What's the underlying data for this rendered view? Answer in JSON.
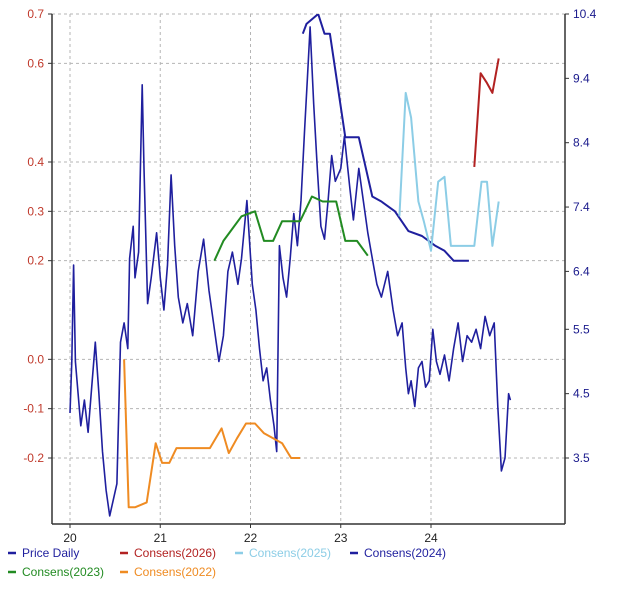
{
  "chart_data": {
    "type": "line",
    "title": "",
    "xlabel": "",
    "ylabel_left": "",
    "ylabel_right": "",
    "grid": true,
    "legend_position": "bottom",
    "x_axis": {
      "ticks": [
        2020,
        2021,
        2022,
        2023,
        2024
      ],
      "labels": [
        "20",
        "21",
        "22",
        "23",
        "24"
      ],
      "range": [
        2019.85,
        2025.25
      ]
    },
    "y_left": {
      "ticks": [
        0.7,
        0.6,
        0.4,
        0.3,
        0.2,
        0.0,
        -0.1,
        -0.2
      ],
      "labels": [
        "0.7",
        "0.6",
        "0.4",
        "0.3",
        "0.2",
        "0.0",
        "-0.1",
        "-0.2"
      ],
      "color": "#c0392b"
    },
    "y_right": {
      "ticks": [
        10.4,
        9.4,
        8.4,
        7.4,
        6.4,
        5.5,
        4.5,
        3.5
      ],
      "labels": [
        "10.4",
        "9.4",
        "8.4",
        "7.4",
        "6.4",
        "5.5",
        "4.5",
        "3.5"
      ],
      "color": "#1a1a8c"
    },
    "series": [
      {
        "name": "Price Daily",
        "axis": "right",
        "color": "#1f1f9e",
        "points": [
          [
            2020.0,
            4.2
          ],
          [
            2020.02,
            5.0
          ],
          [
            2020.04,
            6.5
          ],
          [
            2020.06,
            5.0
          ],
          [
            2020.09,
            4.5
          ],
          [
            2020.12,
            4.0
          ],
          [
            2020.16,
            4.4
          ],
          [
            2020.2,
            3.9
          ],
          [
            2020.24,
            4.6
          ],
          [
            2020.28,
            5.3
          ],
          [
            2020.32,
            4.5
          ],
          [
            2020.36,
            3.6
          ],
          [
            2020.4,
            3.0
          ],
          [
            2020.44,
            2.6
          ],
          [
            2020.48,
            2.85
          ],
          [
            2020.52,
            3.1
          ],
          [
            2020.56,
            5.3
          ],
          [
            2020.6,
            5.6
          ],
          [
            2020.64,
            5.2
          ],
          [
            2020.66,
            6.6
          ],
          [
            2020.7,
            7.1
          ],
          [
            2020.72,
            6.3
          ],
          [
            2020.76,
            6.7
          ],
          [
            2020.8,
            9.3
          ],
          [
            2020.82,
            8.0
          ],
          [
            2020.86,
            5.9
          ],
          [
            2020.9,
            6.3
          ],
          [
            2020.96,
            7.0
          ],
          [
            2021.0,
            6.3
          ],
          [
            2021.04,
            5.8
          ],
          [
            2021.08,
            6.5
          ],
          [
            2021.12,
            7.9
          ],
          [
            2021.16,
            6.8
          ],
          [
            2021.2,
            6.0
          ],
          [
            2021.25,
            5.6
          ],
          [
            2021.3,
            5.9
          ],
          [
            2021.36,
            5.4
          ],
          [
            2021.42,
            6.4
          ],
          [
            2021.48,
            6.9
          ],
          [
            2021.54,
            6.1
          ],
          [
            2021.6,
            5.5
          ],
          [
            2021.65,
            5.0
          ],
          [
            2021.7,
            5.4
          ],
          [
            2021.75,
            6.4
          ],
          [
            2021.8,
            6.7
          ],
          [
            2021.86,
            6.2
          ],
          [
            2021.9,
            6.6
          ],
          [
            2021.96,
            7.5
          ],
          [
            2022.02,
            6.2
          ],
          [
            2022.06,
            5.8
          ],
          [
            2022.1,
            5.2
          ],
          [
            2022.14,
            4.7
          ],
          [
            2022.18,
            4.9
          ],
          [
            2022.22,
            4.4
          ],
          [
            2022.26,
            4.0
          ],
          [
            2022.29,
            3.6
          ],
          [
            2022.32,
            6.8
          ],
          [
            2022.36,
            6.3
          ],
          [
            2022.4,
            6.0
          ],
          [
            2022.44,
            6.6
          ],
          [
            2022.48,
            7.3
          ],
          [
            2022.52,
            6.8
          ],
          [
            2022.56,
            7.5
          ],
          [
            2022.6,
            8.6
          ],
          [
            2022.63,
            9.4
          ],
          [
            2022.66,
            10.2
          ],
          [
            2022.7,
            9.0
          ],
          [
            2022.74,
            8.0
          ],
          [
            2022.78,
            7.1
          ],
          [
            2022.82,
            6.9
          ],
          [
            2022.86,
            7.5
          ],
          [
            2022.9,
            8.2
          ],
          [
            2022.94,
            7.8
          ],
          [
            2023.0,
            8.0
          ],
          [
            2023.04,
            8.5
          ],
          [
            2023.1,
            7.7
          ],
          [
            2023.14,
            7.2
          ],
          [
            2023.2,
            8.0
          ],
          [
            2023.26,
            7.4
          ],
          [
            2023.3,
            7.0
          ],
          [
            2023.35,
            6.6
          ],
          [
            2023.4,
            6.2
          ],
          [
            2023.45,
            6.0
          ],
          [
            2023.52,
            6.4
          ],
          [
            2023.58,
            5.8
          ],
          [
            2023.63,
            5.4
          ],
          [
            2023.68,
            5.6
          ],
          [
            2023.72,
            4.9
          ],
          [
            2023.75,
            4.5
          ],
          [
            2023.78,
            4.7
          ],
          [
            2023.82,
            4.3
          ],
          [
            2023.86,
            4.9
          ],
          [
            2023.9,
            5.0
          ],
          [
            2023.94,
            4.6
          ],
          [
            2023.98,
            4.7
          ],
          [
            2024.02,
            5.5
          ],
          [
            2024.06,
            5.0
          ],
          [
            2024.1,
            4.8
          ],
          [
            2024.15,
            5.1
          ],
          [
            2024.2,
            4.7
          ],
          [
            2024.25,
            5.2
          ],
          [
            2024.3,
            5.6
          ],
          [
            2024.35,
            5.0
          ],
          [
            2024.4,
            5.4
          ],
          [
            2024.45,
            5.3
          ],
          [
            2024.5,
            5.5
          ],
          [
            2024.55,
            5.2
          ],
          [
            2024.6,
            5.7
          ],
          [
            2024.65,
            5.4
          ],
          [
            2024.7,
            5.6
          ],
          [
            2024.74,
            4.3
          ],
          [
            2024.78,
            3.3
          ],
          [
            2024.82,
            3.5
          ],
          [
            2024.86,
            4.5
          ],
          [
            2024.88,
            4.4
          ]
        ]
      },
      {
        "name": "Consens(2026)",
        "axis": "left",
        "color": "#b22222",
        "points": [
          [
            2024.48,
            0.39
          ],
          [
            2024.55,
            0.58
          ],
          [
            2024.62,
            0.56
          ],
          [
            2024.68,
            0.54
          ],
          [
            2024.75,
            0.61
          ]
        ]
      },
      {
        "name": "Consens(2025)",
        "axis": "left",
        "color": "#8ccde6",
        "points": [
          [
            2023.65,
            0.29
          ],
          [
            2023.72,
            0.54
          ],
          [
            2023.78,
            0.49
          ],
          [
            2023.86,
            0.32
          ],
          [
            2023.92,
            0.28
          ],
          [
            2024.0,
            0.22
          ],
          [
            2024.08,
            0.36
          ],
          [
            2024.15,
            0.37
          ],
          [
            2024.22,
            0.23
          ],
          [
            2024.3,
            0.23
          ],
          [
            2024.4,
            0.23
          ],
          [
            2024.48,
            0.23
          ],
          [
            2024.56,
            0.36
          ],
          [
            2024.62,
            0.36
          ],
          [
            2024.68,
            0.23
          ],
          [
            2024.75,
            0.32
          ]
        ]
      },
      {
        "name": "Consens(2024)",
        "axis": "left",
        "color": "#1f1f9e",
        "points": [
          [
            2022.58,
            0.66
          ],
          [
            2022.62,
            0.68
          ],
          [
            2022.75,
            0.7
          ],
          [
            2022.82,
            0.66
          ],
          [
            2022.88,
            0.66
          ],
          [
            2023.05,
            0.45
          ],
          [
            2023.2,
            0.45
          ],
          [
            2023.35,
            0.33
          ],
          [
            2023.45,
            0.32
          ],
          [
            2023.6,
            0.3
          ],
          [
            2023.75,
            0.26
          ],
          [
            2023.9,
            0.25
          ],
          [
            2024.05,
            0.23
          ],
          [
            2024.15,
            0.22
          ],
          [
            2024.25,
            0.2
          ],
          [
            2024.35,
            0.2
          ],
          [
            2024.42,
            0.2
          ]
        ]
      },
      {
        "name": "Consens(2023)",
        "axis": "left",
        "color": "#228b22",
        "points": [
          [
            2021.6,
            0.2
          ],
          [
            2021.7,
            0.24
          ],
          [
            2021.78,
            0.26
          ],
          [
            2021.9,
            0.29
          ],
          [
            2022.05,
            0.3
          ],
          [
            2022.15,
            0.24
          ],
          [
            2022.25,
            0.24
          ],
          [
            2022.35,
            0.28
          ],
          [
            2022.45,
            0.28
          ],
          [
            2022.55,
            0.28
          ],
          [
            2022.68,
            0.33
          ],
          [
            2022.8,
            0.32
          ],
          [
            2022.95,
            0.32
          ],
          [
            2023.05,
            0.24
          ],
          [
            2023.18,
            0.24
          ],
          [
            2023.3,
            0.21
          ]
        ]
      },
      {
        "name": "Consens(2022)",
        "axis": "left",
        "color": "#ef8b22",
        "points": [
          [
            2020.6,
            0.0
          ],
          [
            2020.65,
            -0.3
          ],
          [
            2020.72,
            -0.3
          ],
          [
            2020.85,
            -0.29
          ],
          [
            2020.95,
            -0.17
          ],
          [
            2021.02,
            -0.21
          ],
          [
            2021.1,
            -0.21
          ],
          [
            2021.18,
            -0.18
          ],
          [
            2021.3,
            -0.18
          ],
          [
            2021.45,
            -0.18
          ],
          [
            2021.55,
            -0.18
          ],
          [
            2021.68,
            -0.14
          ],
          [
            2021.76,
            -0.19
          ],
          [
            2021.85,
            -0.16
          ],
          [
            2021.95,
            -0.13
          ],
          [
            2022.05,
            -0.13
          ],
          [
            2022.15,
            -0.15
          ],
          [
            2022.25,
            -0.16
          ],
          [
            2022.35,
            -0.17
          ],
          [
            2022.45,
            -0.2
          ],
          [
            2022.55,
            -0.2
          ]
        ]
      }
    ],
    "legend": [
      {
        "label": "Price Daily",
        "color": "#1f1f9e"
      },
      {
        "label": "Consens(2026)",
        "color": "#b22222"
      },
      {
        "label": "Consens(2025)",
        "color": "#8ccde6"
      },
      {
        "label": "Consens(2024)",
        "color": "#1f1f9e"
      },
      {
        "label": "Consens(2023)",
        "color": "#228b22"
      },
      {
        "label": "Consens(2022)",
        "color": "#ef8b22"
      }
    ]
  }
}
